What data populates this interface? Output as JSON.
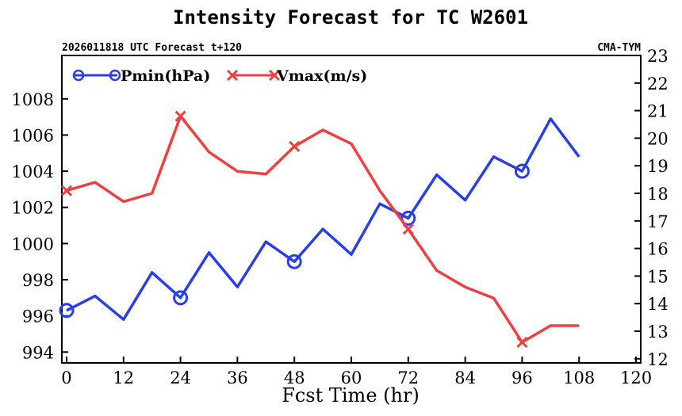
{
  "chart_data": {
    "type": "line",
    "title": "Intensity Forecast for TC W2601",
    "subtitle_left": "2026011818 UTC Forecast t+120",
    "subtitle_right": "CMA-TYM",
    "xlabel": "Fcst Time (hr)",
    "x": [
      0,
      6,
      12,
      18,
      24,
      30,
      36,
      42,
      48,
      54,
      60,
      66,
      72,
      78,
      84,
      90,
      96,
      102,
      108
    ],
    "xlim": [
      -1,
      121
    ],
    "xticks": [
      0,
      12,
      24,
      36,
      48,
      60,
      72,
      84,
      96,
      108,
      120
    ],
    "ylim_left": [
      993.4,
      1010.4
    ],
    "yticks_left": [
      994,
      996,
      998,
      1000,
      1002,
      1004,
      1006,
      1008
    ],
    "ylim_right": [
      11.85,
      23
    ],
    "yticks_right": [
      12,
      13,
      14,
      15,
      16,
      17,
      18,
      19,
      20,
      21,
      22,
      23
    ],
    "series": [
      {
        "name": "Pmin(hPa)",
        "axis": "left",
        "color": "#2a3ee8",
        "marker": "circle",
        "marker_every": 4,
        "values": [
          996.3,
          997.1,
          995.8,
          998.4,
          997.0,
          999.5,
          997.6,
          1000.1,
          999.0,
          1000.8,
          999.4,
          1002.2,
          1001.4,
          1003.8,
          1002.4,
          1004.8,
          1004.0,
          1006.9,
          1004.8
        ]
      },
      {
        "name": "Vmax(m/s)",
        "axis": "right",
        "color": "#ee4040",
        "marker": "x",
        "marker_every": 4,
        "values": [
          18.1,
          18.4,
          17.7,
          18.0,
          20.8,
          19.5,
          18.8,
          18.7,
          19.7,
          20.3,
          19.8,
          18.1,
          16.7,
          15.2,
          14.6,
          14.2,
          12.6,
          13.2,
          13.2
        ]
      }
    ],
    "legend_position": "top-left"
  }
}
